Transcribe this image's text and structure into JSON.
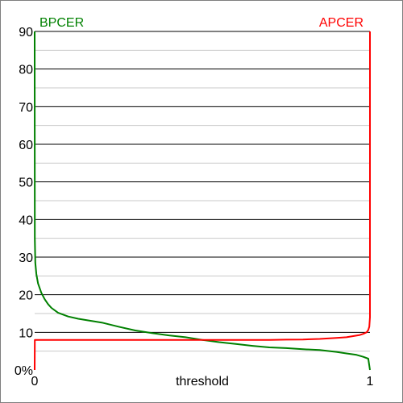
{
  "chart_data": {
    "type": "line",
    "xlabel": "threshold",
    "x_ticks": [
      "0",
      "1"
    ],
    "y_ticks": [
      "0%",
      "10",
      "20",
      "30",
      "40",
      "50",
      "60",
      "70",
      "80",
      "90"
    ],
    "xlim": [
      0,
      1
    ],
    "ylim": [
      0,
      90
    ],
    "grid": true,
    "colors": {
      "bpcer": "#008000",
      "apcer": "#ff0000",
      "major_grid": "#000000",
      "minor_grid": "#c8c8c8"
    },
    "series": [
      {
        "name": "BPCER",
        "legend_position": "top-left",
        "x": [
          0,
          0.0005,
          0.002,
          0.005,
          0.01,
          0.02,
          0.03,
          0.04,
          0.05,
          0.07,
          0.1,
          0.13,
          0.15,
          0.2,
          0.25,
          0.3,
          0.35,
          0.4,
          0.45,
          0.5,
          0.55,
          0.6,
          0.65,
          0.7,
          0.75,
          0.8,
          0.85,
          0.9,
          0.93,
          0.96,
          0.98,
          0.995,
          1.0
        ],
        "y": [
          90,
          35,
          28.5,
          25.5,
          23,
          20.5,
          18.8,
          17.5,
          16.5,
          15.2,
          14.2,
          13.6,
          13.3,
          12.6,
          11.5,
          10.5,
          9.8,
          9.2,
          8.7,
          8.0,
          7.4,
          6.9,
          6.4,
          6.0,
          5.8,
          5.5,
          5.3,
          4.8,
          4.4,
          4.0,
          3.5,
          3.0,
          0
        ]
      },
      {
        "name": "APCER",
        "legend_position": "top-right",
        "x": [
          0,
          0.0005,
          0.1,
          0.2,
          0.3,
          0.4,
          0.5,
          0.6,
          0.7,
          0.75,
          0.8,
          0.85,
          0.9,
          0.93,
          0.95,
          0.97,
          0.98,
          0.99,
          0.995,
          0.998,
          1.0,
          1.0
        ],
        "y": [
          0,
          8.0,
          8.0,
          8.0,
          8.0,
          8.0,
          8.0,
          8.0,
          8.0,
          8.05,
          8.1,
          8.25,
          8.5,
          8.7,
          9.0,
          9.3,
          9.6,
          10.0,
          10.6,
          11.5,
          14,
          90
        ]
      }
    ]
  }
}
